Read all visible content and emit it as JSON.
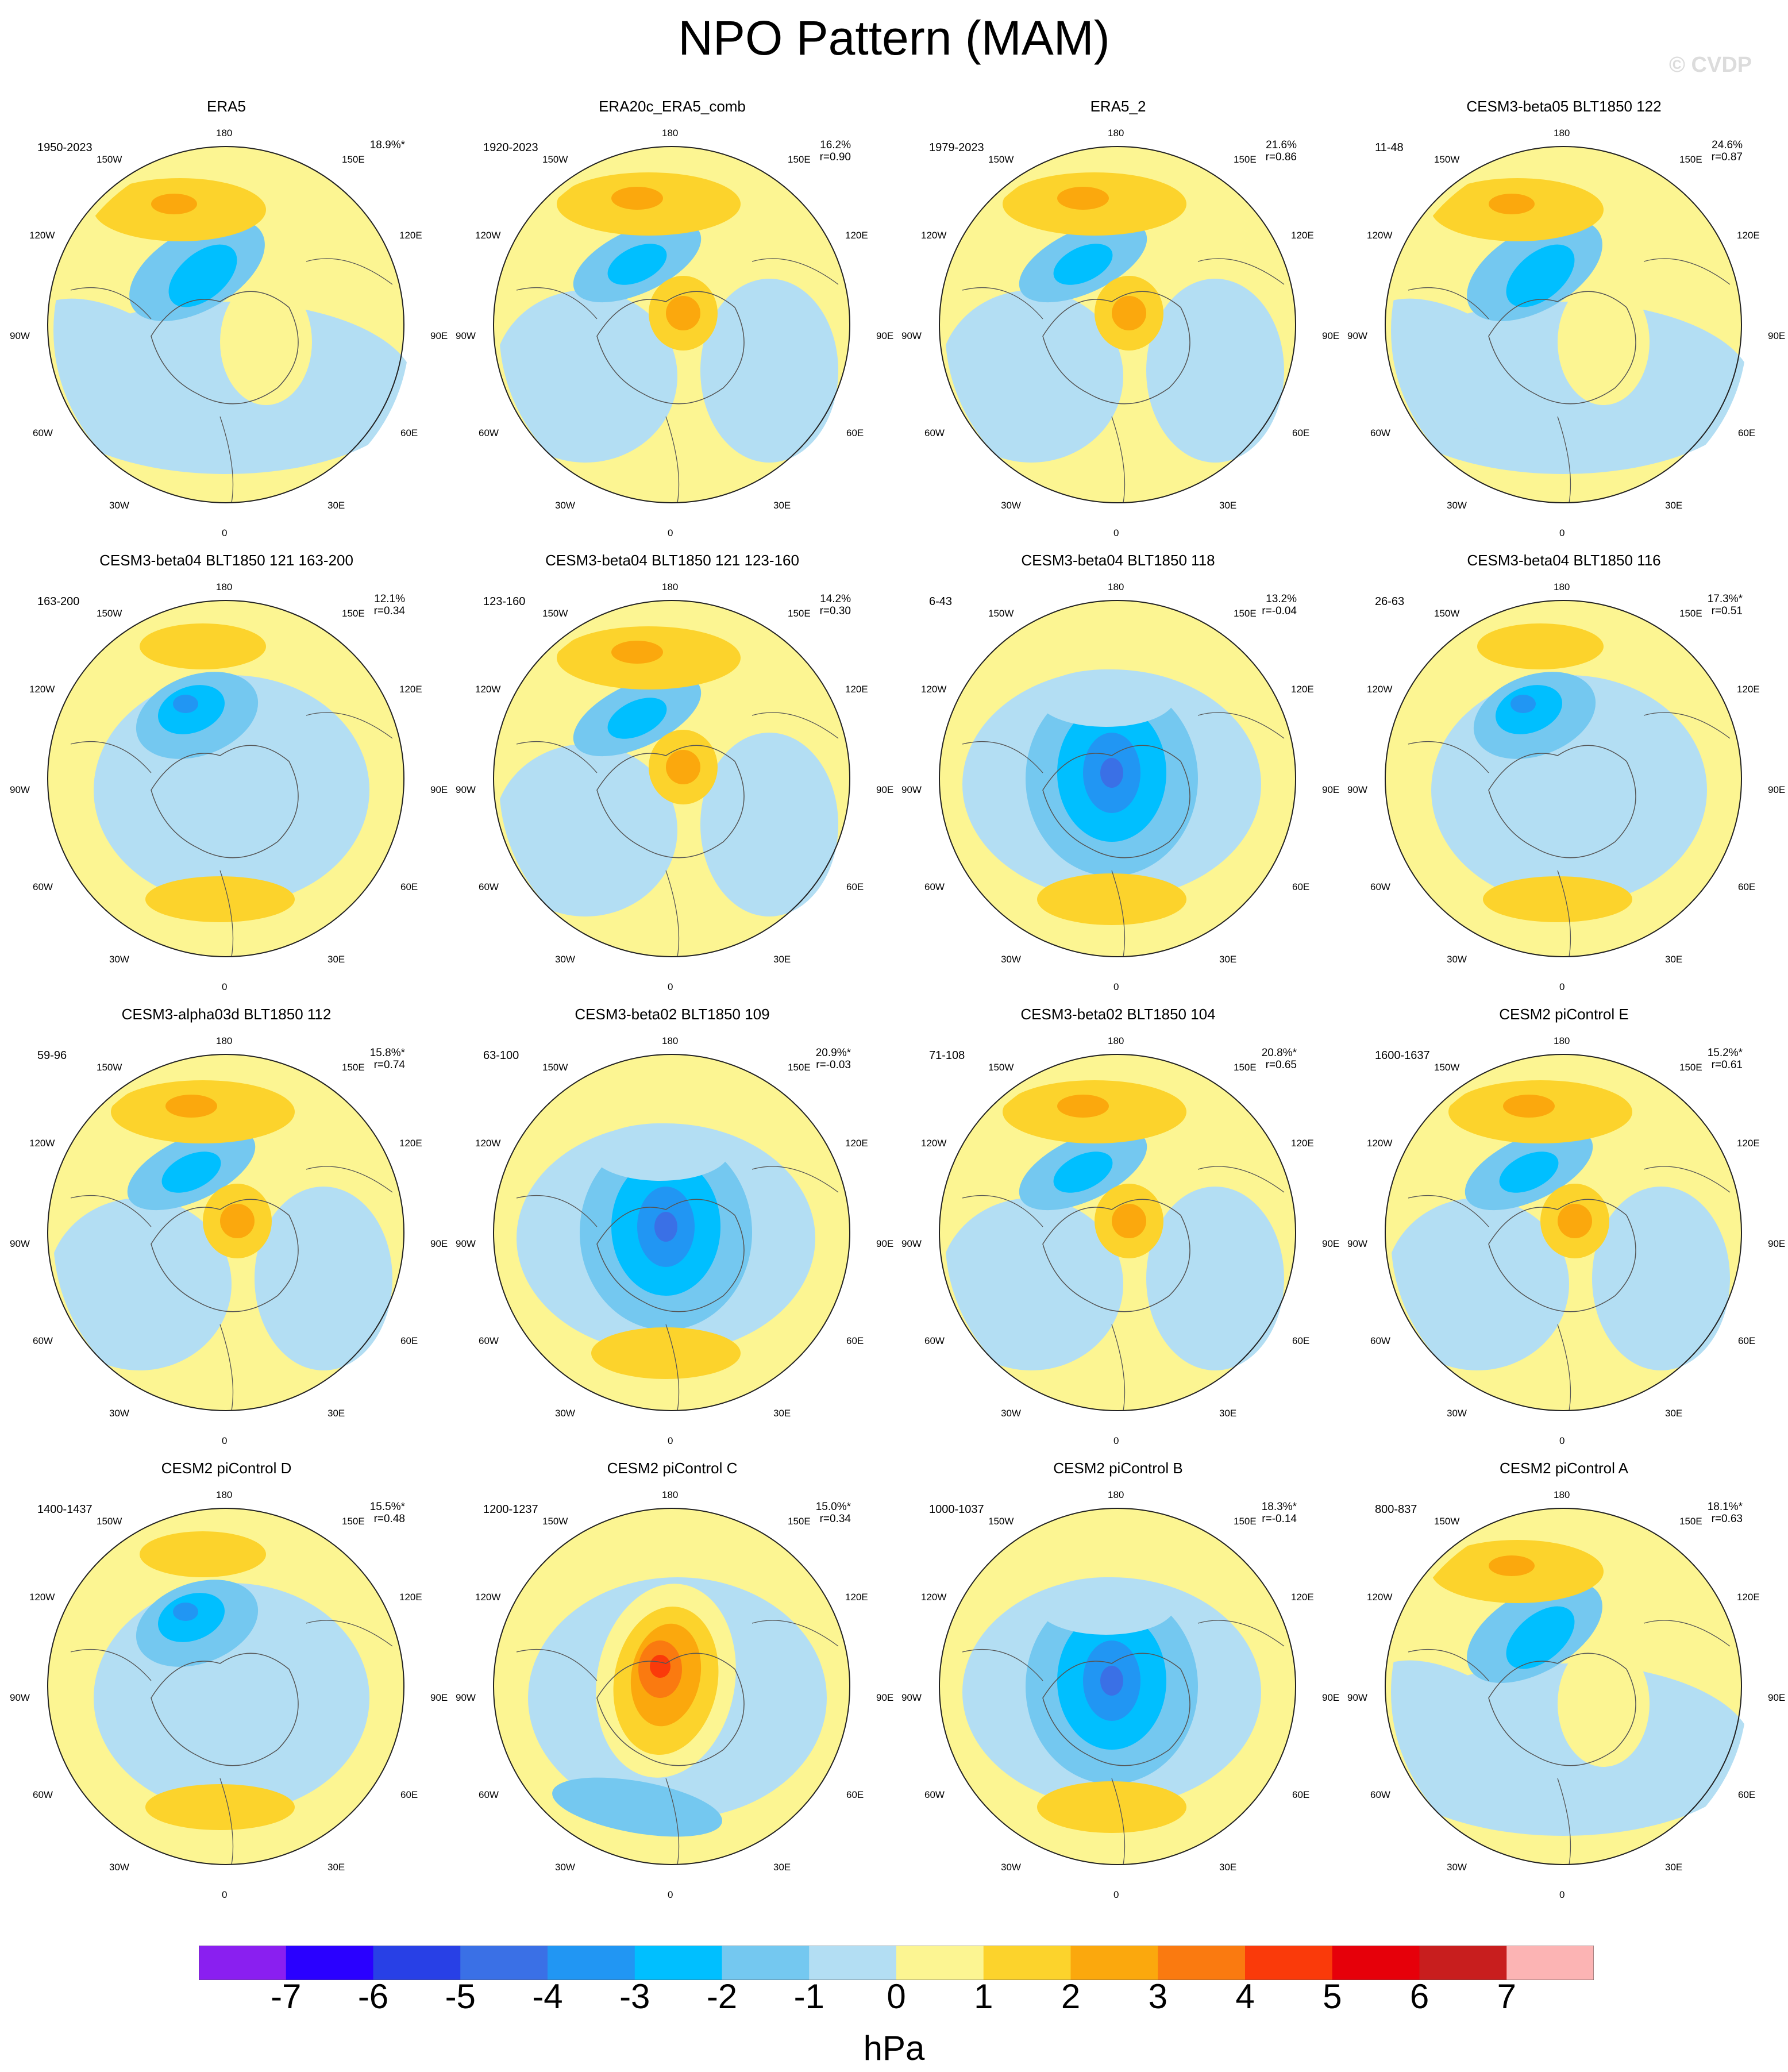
{
  "title": "NPO Pattern (MAM)",
  "watermark": "© CVDP",
  "lon_labels": {
    "top": "180",
    "bottom": "0",
    "left": "90W",
    "right": "90E",
    "ul": "120W",
    "ur": "120E",
    "ll": "60W",
    "lr": "60E",
    "uul": "150W",
    "uur": "150E",
    "bll": "30W",
    "blr": "30E"
  },
  "panels": [
    {
      "name": "ERA5",
      "years": "1950-2023",
      "pct": "18.9%*",
      "r": "",
      "pattern": 0
    },
    {
      "name": "ERA20c_ERA5_comb",
      "years": "1920-2023",
      "pct": "16.2%",
      "r": "r=0.90",
      "pattern": 1
    },
    {
      "name": "ERA5_2",
      "years": "1979-2023",
      "pct": "21.6%",
      "r": "r=0.86",
      "pattern": 1
    },
    {
      "name": "CESM3-beta05 BLT1850 122",
      "years": "11-48",
      "pct": "24.6%",
      "r": "r=0.87",
      "pattern": 0
    },
    {
      "name": "CESM3-beta04 BLT1850 121 163-200",
      "years": "163-200",
      "pct": "12.1%",
      "r": "r=0.34",
      "pattern": 2
    },
    {
      "name": "CESM3-beta04 BLT1850 121 123-160",
      "years": "123-160",
      "pct": "14.2%",
      "r": "r=0.30",
      "pattern": 1
    },
    {
      "name": "CESM3-beta04 BLT1850 118",
      "years": "6-43",
      "pct": "13.2%",
      "r": "r=-0.04",
      "pattern": 3
    },
    {
      "name": "CESM3-beta04 BLT1850 116",
      "years": "26-63",
      "pct": "17.3%*",
      "r": "r=0.51",
      "pattern": 2
    },
    {
      "name": "CESM3-alpha03d BLT1850 112",
      "years": "59-96",
      "pct": "15.8%*",
      "r": "r=0.74",
      "pattern": 1
    },
    {
      "name": "CESM3-beta02 BLT1850 109",
      "years": "63-100",
      "pct": "20.9%*",
      "r": "r=-0.03",
      "pattern": 3
    },
    {
      "name": "CESM3-beta02 BLT1850 104",
      "years": "71-108",
      "pct": "20.8%*",
      "r": "r=0.65",
      "pattern": 1
    },
    {
      "name": "CESM2 piControl E",
      "years": "1600-1637",
      "pct": "15.2%*",
      "r": "r=0.61",
      "pattern": 1
    },
    {
      "name": "CESM2 piControl D",
      "years": "1400-1437",
      "pct": "15.5%*",
      "r": "r=0.48",
      "pattern": 2
    },
    {
      "name": "CESM2 piControl C",
      "years": "1200-1237",
      "pct": "15.0%*",
      "r": "r=0.34",
      "pattern": 4
    },
    {
      "name": "CESM2 piControl B",
      "years": "1000-1037",
      "pct": "18.3%*",
      "r": "r=-0.14",
      "pattern": 3
    },
    {
      "name": "CESM2 piControl A",
      "years": "800-837",
      "pct": "18.1%*",
      "r": "r=0.63",
      "pattern": 0
    }
  ],
  "colorbar": {
    "colors": [
      "#8a1ff0",
      "#2a00ff",
      "#2840e6",
      "#3a70e6",
      "#2196f3",
      "#00bfff",
      "#74c8f0",
      "#b3def3",
      "#fcf592",
      "#fcd32c",
      "#fba80d",
      "#fa7a10",
      "#fa3a0a",
      "#e6000a",
      "#c81e1e",
      "#fcb4b4"
    ],
    "ticks": [
      "-7",
      "-6",
      "-5",
      "-4",
      "-3",
      "-2",
      "-1",
      "0",
      "1",
      "2",
      "3",
      "4",
      "5",
      "6",
      "7"
    ],
    "units": "hPa"
  }
}
